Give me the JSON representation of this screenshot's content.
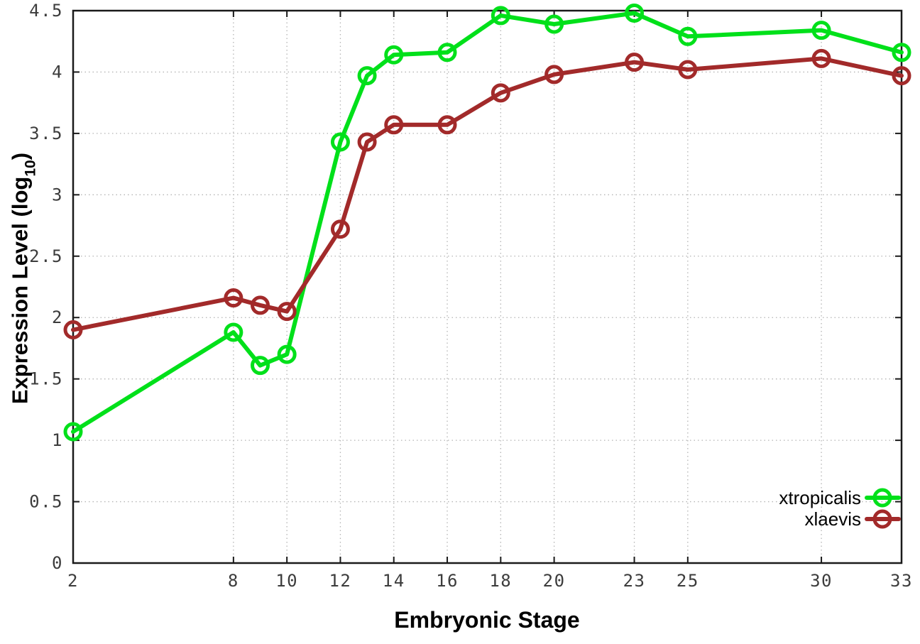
{
  "labels": {
    "y_prefix": "Expression Level (log",
    "y_sub": "10",
    "y_suffix": ")",
    "x": "Embryonic Stage"
  },
  "chart_data": {
    "type": "line",
    "title": "",
    "xlabel": "Embryonic Stage",
    "ylabel": "Expression Level (log10)",
    "x": [
      2,
      8,
      9,
      10,
      12,
      13,
      14,
      16,
      18,
      20,
      23,
      25,
      30,
      33
    ],
    "x_ticks": [
      2,
      8,
      10,
      12,
      14,
      16,
      18,
      20,
      23,
      25,
      30,
      33
    ],
    "y_ticks": [
      0,
      0.5,
      1,
      1.5,
      2,
      2.5,
      3,
      3.5,
      4,
      4.5
    ],
    "xlim": [
      2,
      33
    ],
    "ylim": [
      0,
      4.5
    ],
    "grid": true,
    "grid_style": "dotted",
    "legend_position": "bottom-right",
    "series": [
      {
        "name": "xtropicalis",
        "color": "#00e01a",
        "values": [
          1.07,
          1.88,
          1.61,
          1.7,
          3.43,
          3.97,
          4.14,
          4.16,
          4.46,
          4.39,
          4.48,
          4.29,
          4.34,
          4.16
        ]
      },
      {
        "name": "xlaevis",
        "color": "#a22a2a",
        "values": [
          1.9,
          2.16,
          2.1,
          2.05,
          2.72,
          3.43,
          3.57,
          3.57,
          3.83,
          3.98,
          4.08,
          4.02,
          4.11,
          3.97
        ]
      }
    ],
    "colors": {
      "grid": "#b4b4b4",
      "axis": "#1a1a1a",
      "tick_text": "#3c3c3c"
    }
  }
}
